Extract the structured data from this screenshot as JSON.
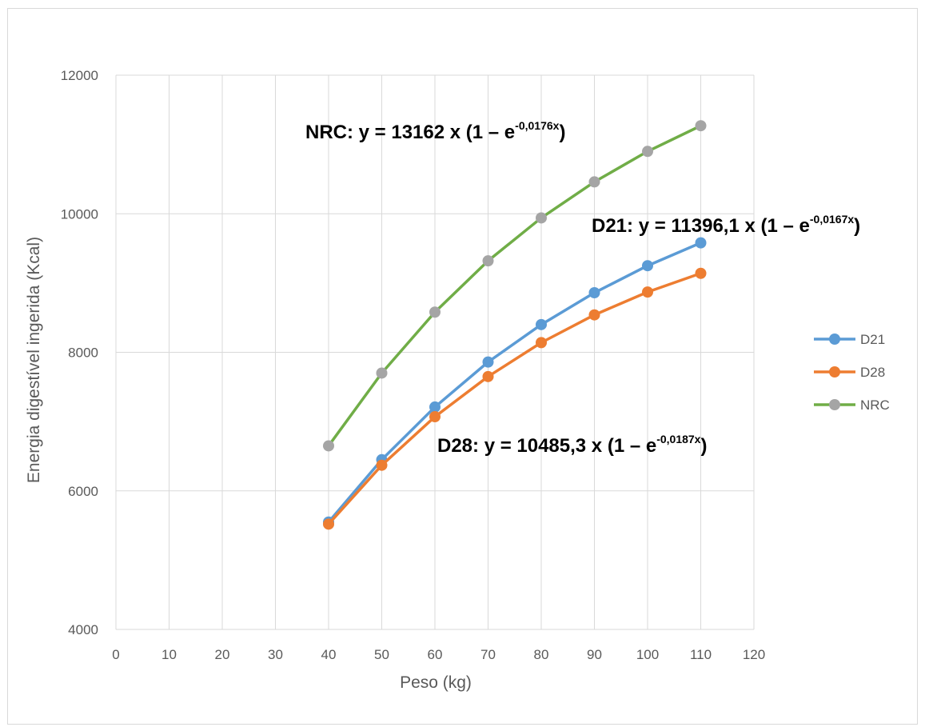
{
  "chart_data": {
    "type": "line",
    "xlabel": "Peso (kg)",
    "ylabel": "Energia digestível ingerida (Kcal)",
    "xlim": [
      0,
      120
    ],
    "ylim": [
      4000,
      12000
    ],
    "x_ticks": [
      0,
      10,
      20,
      30,
      40,
      50,
      60,
      70,
      80,
      90,
      100,
      110,
      120
    ],
    "y_ticks": [
      4000,
      6000,
      8000,
      10000,
      12000
    ],
    "grid": true,
    "legend_position": "right",
    "x": [
      40,
      50,
      60,
      70,
      80,
      90,
      100,
      110
    ],
    "series": [
      {
        "name": "D21",
        "color": "#5b9bd5",
        "values": [
          5550,
          6450,
          7210,
          7860,
          8400,
          8860,
          9250,
          9580
        ]
      },
      {
        "name": "D28",
        "color": "#ed7d31",
        "values": [
          5520,
          6370,
          7070,
          7650,
          8140,
          8540,
          8870,
          9140
        ]
      },
      {
        "name": "NRC",
        "color": "#70ad47",
        "marker_color": "#a5a5a5",
        "values": [
          6650,
          7700,
          8580,
          9320,
          9940,
          10460,
          10900,
          11270
        ]
      }
    ],
    "annotations": [
      {
        "id": "nrc",
        "prefix": "NRC: y = 13162 x (1 – e",
        "exponent": "-0,0176x",
        "suffix": ")"
      },
      {
        "id": "d21",
        "prefix": "D21: y = 11396,1 x (1 – e",
        "exponent": "-0,0167x",
        "suffix": ")"
      },
      {
        "id": "d28",
        "prefix": "D28: y = 10485,3 x (1 – e",
        "exponent": "-0,0187x",
        "suffix": ")"
      }
    ]
  }
}
